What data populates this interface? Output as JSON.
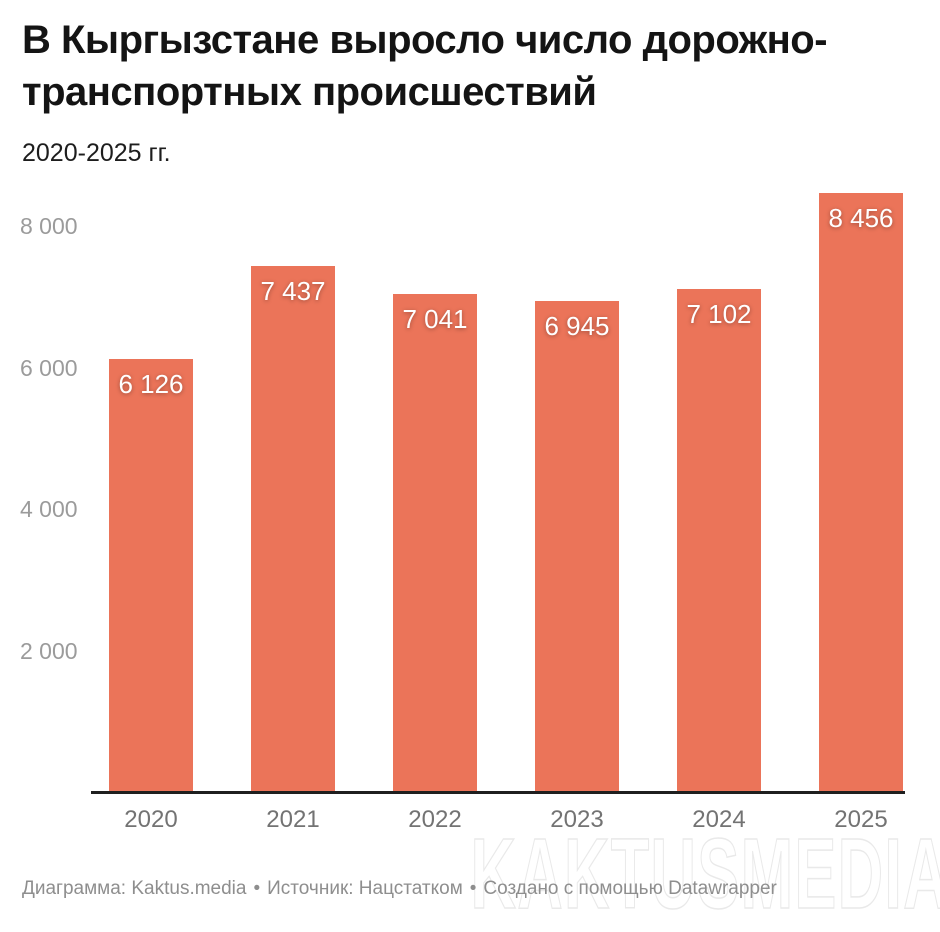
{
  "header": {
    "title": "В Кыргызстане выросло число дорожно-транспортных происшествий",
    "title_line1": "В Кыргызстане выросло число дорожно-",
    "title_line2": "транспортных происшествий",
    "subtitle": "2020-2025 гг."
  },
  "chart_data": {
    "type": "bar",
    "title": "В Кыргызстане выросло число дорожно-транспортных происшествий",
    "subtitle": "2020-2025 гг.",
    "categories": [
      "2020",
      "2021",
      "2022",
      "2023",
      "2024",
      "2025"
    ],
    "values": [
      6126,
      7437,
      7041,
      6945,
      7102,
      8456
    ],
    "value_labels": [
      "6 126",
      "7 437",
      "7 041",
      "6 945",
      "7 102",
      "8 456"
    ],
    "yticks": [
      {
        "value": 2000,
        "label": "2 000"
      },
      {
        "value": 4000,
        "label": "4 000"
      },
      {
        "value": 6000,
        "label": "6 000"
      },
      {
        "value": 8000,
        "label": "8 000"
      }
    ],
    "ylim": [
      0,
      8456
    ],
    "xlabel": "",
    "ylabel": "",
    "grid": false,
    "legend": "none",
    "value_label_position": "inside-top"
  },
  "colors": {
    "bar": "#eb7459",
    "axis_line": "#1f1f1f",
    "y_tick_label": "#9b9b9b",
    "x_tick_label": "#737373",
    "value_label": "#ffffff",
    "footer_text": "#8e8e8e",
    "watermark_outline": "#e9e9e9",
    "background": "#ffffff"
  },
  "footer": {
    "credit": "Диаграмма: Kaktus.media",
    "bullet": "•",
    "source": "Источник: Нацстатком",
    "created": "Создано с помощью Datawrapper"
  },
  "watermark": {
    "text": "KAKTUSMEDIA"
  }
}
